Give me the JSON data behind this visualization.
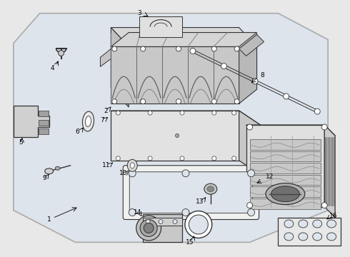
{
  "bg": "#e8e8e8",
  "poly_fill": "#dde4ec",
  "white": "#ffffff",
  "lc": "#333333",
  "lc_light": "#666666",
  "lc_mid": "#555555",
  "fig_w": 4.9,
  "fig_h": 3.6,
  "dpi": 100
}
